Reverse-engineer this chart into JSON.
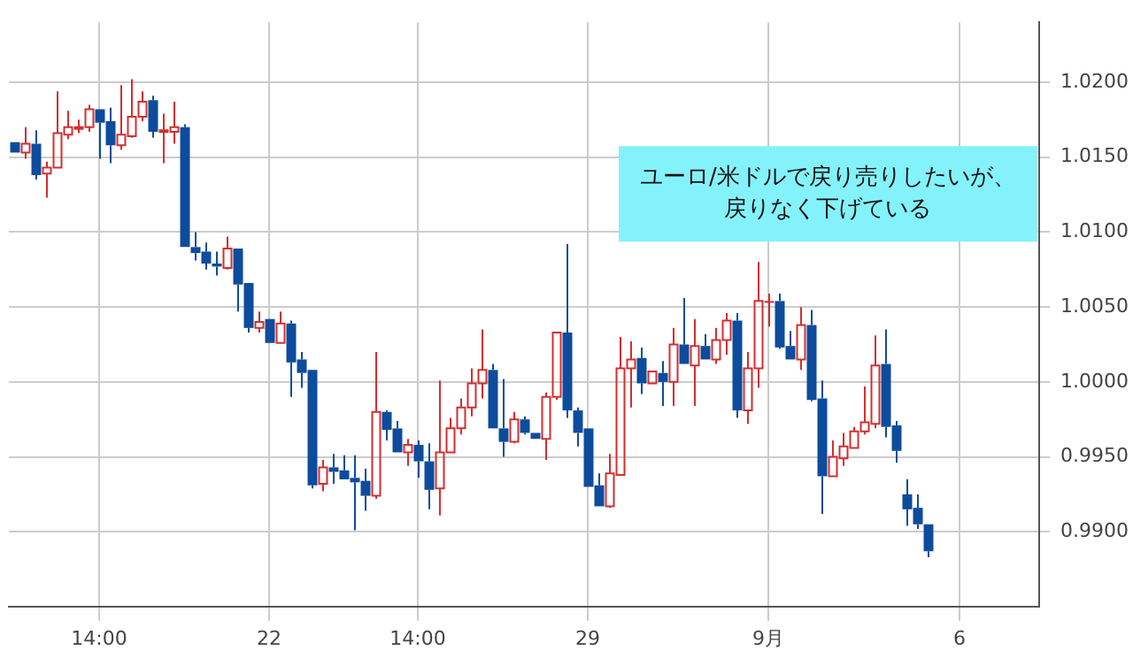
{
  "chart_data": {
    "type": "candlestick",
    "categories": [
      null,
      null,
      null,
      null,
      null,
      null,
      null,
      null,
      "14:00",
      null,
      null,
      null,
      null,
      null,
      null,
      null,
      null,
      null,
      null,
      null,
      null,
      null,
      null,
      null,
      "22",
      null,
      null,
      null,
      null,
      null,
      null,
      null,
      null,
      null,
      null,
      null,
      null,
      null,
      "14:00",
      null,
      null,
      null,
      null,
      null,
      null,
      null,
      null,
      null,
      null,
      null,
      null,
      null,
      null,
      null,
      "29",
      null,
      null,
      null,
      null,
      null,
      null,
      null,
      null,
      null,
      null,
      null,
      null,
      null,
      null,
      null,
      null,
      "9月",
      null,
      null,
      null,
      null,
      null,
      null,
      null,
      null,
      null,
      null,
      null,
      null,
      null,
      null,
      null,
      null,
      null,
      "6",
      null,
      null,
      null,
      null,
      null,
      null,
      null
    ],
    "ohlc": [
      [
        1.016,
        1.016,
        1.0153,
        1.0153
      ],
      [
        1.0153,
        1.017,
        1.0149,
        1.0159
      ],
      [
        1.0159,
        1.0168,
        1.0135,
        1.0138
      ],
      [
        1.0139,
        1.0147,
        1.0123,
        1.0143
      ],
      [
        1.0143,
        1.0194,
        1.0143,
        1.0166
      ],
      [
        1.0165,
        1.0181,
        1.0162,
        1.017
      ],
      [
        1.0169,
        1.0175,
        1.0166,
        1.017
      ],
      [
        1.017,
        1.0185,
        1.0167,
        1.0182
      ],
      [
        1.0182,
        1.0182,
        1.0149,
        1.0173
      ],
      [
        1.0174,
        1.0183,
        1.0146,
        1.0158
      ],
      [
        1.0158,
        1.0198,
        1.0155,
        1.0165
      ],
      [
        1.0164,
        1.0202,
        1.0163,
        1.0177
      ],
      [
        1.0177,
        1.0194,
        1.0174,
        1.0187
      ],
      [
        1.0188,
        1.0191,
        1.0163,
        1.0167
      ],
      [
        1.0167,
        1.0179,
        1.0146,
        1.0168
      ],
      [
        1.0167,
        1.0187,
        1.0159,
        1.017
      ],
      [
        1.017,
        1.0172,
        1.009,
        1.009
      ],
      [
        1.009,
        1.01,
        1.0081,
        1.0086
      ],
      [
        1.0087,
        1.0093,
        1.0075,
        1.0079
      ],
      [
        1.0079,
        1.0087,
        1.0071,
        1.0077
      ],
      [
        1.0076,
        1.0097,
        1.0075,
        1.0089
      ],
      [
        1.0089,
        1.0089,
        1.0047,
        1.0065
      ],
      [
        1.0066,
        1.0066,
        1.0033,
        1.0036
      ],
      [
        1.0036,
        1.0047,
        1.0033,
        1.004
      ],
      [
        1.0042,
        1.0042,
        1.0026,
        1.0026
      ],
      [
        1.0026,
        1.0047,
        1.0026,
        1.0039
      ],
      [
        1.0039,
        1.0041,
        0.999,
        1.0013
      ],
      [
        1.0015,
        1.002,
        0.9996,
        1.0006
      ],
      [
        1.0008,
        1.0008,
        0.9929,
        0.9931
      ],
      [
        0.9932,
        0.9948,
        0.9927,
        0.9943
      ],
      [
        0.9943,
        0.9952,
        0.9932,
        0.994
      ],
      [
        0.9941,
        0.9951,
        0.9935,
        0.9935
      ],
      [
        0.9936,
        0.9951,
        0.9901,
        0.9933
      ],
      [
        0.9934,
        0.9942,
        0.9914,
        0.9924
      ],
      [
        0.9924,
        1.002,
        0.9922,
        0.998
      ],
      [
        0.998,
        0.9981,
        0.9961,
        0.9968
      ],
      [
        0.9969,
        0.9974,
        0.9953,
        0.9953
      ],
      [
        0.9953,
        0.9962,
        0.9944,
        0.9958
      ],
      [
        0.9958,
        0.9961,
        0.9936,
        0.9947
      ],
      [
        0.9947,
        0.9959,
        0.9915,
        0.9928
      ],
      [
        0.9929,
        1.0001,
        0.9911,
        0.9953
      ],
      [
        0.9953,
        0.9976,
        0.9953,
        0.9969
      ],
      [
        0.9969,
        0.9989,
        0.9965,
        0.9983
      ],
      [
        0.9983,
        1.0009,
        0.9977,
        0.9999
      ],
      [
        0.9999,
        1.0035,
        0.9989,
        1.0008
      ],
      [
        1.0008,
        1.0012,
        0.9969,
        0.9969
      ],
      [
        0.9969,
        1.0002,
        0.995,
        0.996
      ],
      [
        0.996,
        0.998,
        0.9959,
        0.9975
      ],
      [
        0.9975,
        0.9977,
        0.9965,
        0.9966
      ],
      [
        0.9966,
        0.9966,
        0.9962,
        0.9962
      ],
      [
        0.9962,
        0.9993,
        0.9948,
        0.999
      ],
      [
        0.999,
        1.0033,
        0.9988,
        1.0033
      ],
      [
        1.0033,
        1.0092,
        0.9976,
        0.9981
      ],
      [
        0.9981,
        0.9983,
        0.9957,
        0.9966
      ],
      [
        0.9969,
        0.9969,
        0.993,
        0.993
      ],
      [
        0.9931,
        0.9939,
        0.9917,
        0.9917
      ],
      [
        0.9917,
        0.9952,
        0.9916,
        0.9939
      ],
      [
        0.9938,
        1.003,
        0.9938,
        1.0009
      ],
      [
        1.0009,
        1.0027,
        0.9983,
        1.0015
      ],
      [
        1.0016,
        1.0023,
        0.9992,
        0.9999
      ],
      [
        0.9999,
        1.0007,
        0.9999,
        1.0007
      ],
      [
        1.0006,
        1.0014,
        0.9984,
        1.0
      ],
      [
        1.0,
        1.0036,
        0.9984,
        1.0025
      ],
      [
        1.0025,
        1.0056,
        1.0012,
        1.0012
      ],
      [
        1.0011,
        1.0042,
        0.9984,
        1.0024
      ],
      [
        1.0024,
        1.0032,
        1.0015,
        1.0015
      ],
      [
        1.0015,
        1.0036,
        1.0012,
        1.0028
      ],
      [
        1.0028,
        1.0046,
        1.0018,
        1.0041
      ],
      [
        1.0041,
        1.0046,
        0.9976,
        0.9981
      ],
      [
        0.9981,
        1.002,
        0.9972,
        1.0009
      ],
      [
        1.0009,
        1.008,
        0.9996,
        1.0054
      ],
      [
        1.0054,
        1.0059,
        1.0037,
        1.0054
      ],
      [
        1.0054,
        1.0059,
        1.0022,
        1.0023
      ],
      [
        1.0024,
        1.0034,
        1.0015,
        1.0015
      ],
      [
        1.0015,
        1.005,
        1.0008,
        1.0038
      ],
      [
        1.0038,
        1.0048,
        0.9987,
        0.9988
      ],
      [
        0.9989,
        1.0001,
        0.9912,
        0.9937
      ],
      [
        0.9937,
        0.9961,
        0.9937,
        0.995
      ],
      [
        0.9949,
        0.9966,
        0.9944,
        0.9957
      ],
      [
        0.9956,
        0.997,
        0.9956,
        0.9967
      ],
      [
        0.9967,
        0.9997,
        0.9965,
        0.9973
      ],
      [
        0.9972,
        1.0031,
        0.9969,
        1.0011
      ],
      [
        1.0012,
        1.0035,
        0.9963,
        0.997
      ],
      [
        0.9971,
        0.9974,
        0.9946,
        0.9954
      ],
      [
        0.9925,
        0.9935,
        0.9904,
        0.9915
      ],
      [
        0.9916,
        0.9925,
        0.9902,
        0.9905
      ],
      [
        0.9905,
        0.9905,
        0.9883,
        0.9887
      ],
      null,
      null,
      null,
      null,
      null,
      null,
      null,
      null,
      null,
      null
    ],
    "colors": [
      "#0d4c9c",
      "#d32f2f",
      "#0d4c9c",
      "#d32f2f",
      "#d32f2f",
      "#d32f2f",
      "#d32f2f",
      "#d32f2f",
      "#0d4c9c",
      "#0d4c9c",
      "#d32f2f",
      "#d32f2f",
      "#d32f2f",
      "#0d4c9c",
      "#d32f2f",
      "#d32f2f",
      "#0d4c9c",
      "#0d4c9c",
      "#0d4c9c",
      "#0d4c9c",
      "#d32f2f",
      "#0d4c9c",
      "#0d4c9c",
      "#d32f2f",
      "#0d4c9c",
      "#d32f2f",
      "#0d4c9c",
      "#0d4c9c",
      "#0d4c9c",
      "#d32f2f",
      "#0d4c9c",
      "#0d4c9c",
      "#0d4c9c",
      "#0d4c9c",
      "#d32f2f",
      "#0d4c9c",
      "#0d4c9c",
      "#d32f2f",
      "#0d4c9c",
      "#0d4c9c",
      "#d32f2f",
      "#d32f2f",
      "#d32f2f",
      "#d32f2f",
      "#d32f2f",
      "#0d4c9c",
      "#0d4c9c",
      "#d32f2f",
      "#0d4c9c",
      "#0d4c9c",
      "#d32f2f",
      "#d32f2f",
      "#0d4c9c",
      "#0d4c9c",
      "#0d4c9c",
      "#0d4c9c",
      "#d32f2f",
      "#d32f2f",
      "#d32f2f",
      "#0d4c9c",
      "#d32f2f",
      "#0d4c9c",
      "#d32f2f",
      "#0d4c9c",
      "#d32f2f",
      "#0d4c9c",
      "#d32f2f",
      "#d32f2f",
      "#0d4c9c",
      "#d32f2f",
      "#d32f2f",
      "#d32f2f",
      "#0d4c9c",
      "#0d4c9c",
      "#d32f2f",
      "#0d4c9c",
      "#0d4c9c",
      "#d32f2f",
      "#d32f2f",
      "#d32f2f",
      "#d32f2f",
      "#d32f2f",
      "#0d4c9c",
      "#0d4c9c",
      "#0d4c9c",
      "#0d4c9c",
      "#0d4c9c",
      null,
      null,
      null,
      null,
      null,
      null,
      null,
      null,
      null,
      null
    ],
    "ylim": [
      0.985,
      1.024
    ],
    "yticks": [
      {
        "value": 0.99,
        "label": "0.9900"
      },
      {
        "value": 0.995,
        "label": "0.9950"
      },
      {
        "value": 1.0,
        "label": "1.0000"
      },
      {
        "value": 1.005,
        "label": "1.0050"
      },
      {
        "value": 1.01,
        "label": "1.0100"
      },
      {
        "value": 1.015,
        "label": "1.0150"
      },
      {
        "value": 1.02,
        "label": "1.0200"
      }
    ],
    "grid": true,
    "annotations": [
      "ユーロ/米ドルで戻り売りしたいが、戻りなく下げている"
    ]
  }
}
